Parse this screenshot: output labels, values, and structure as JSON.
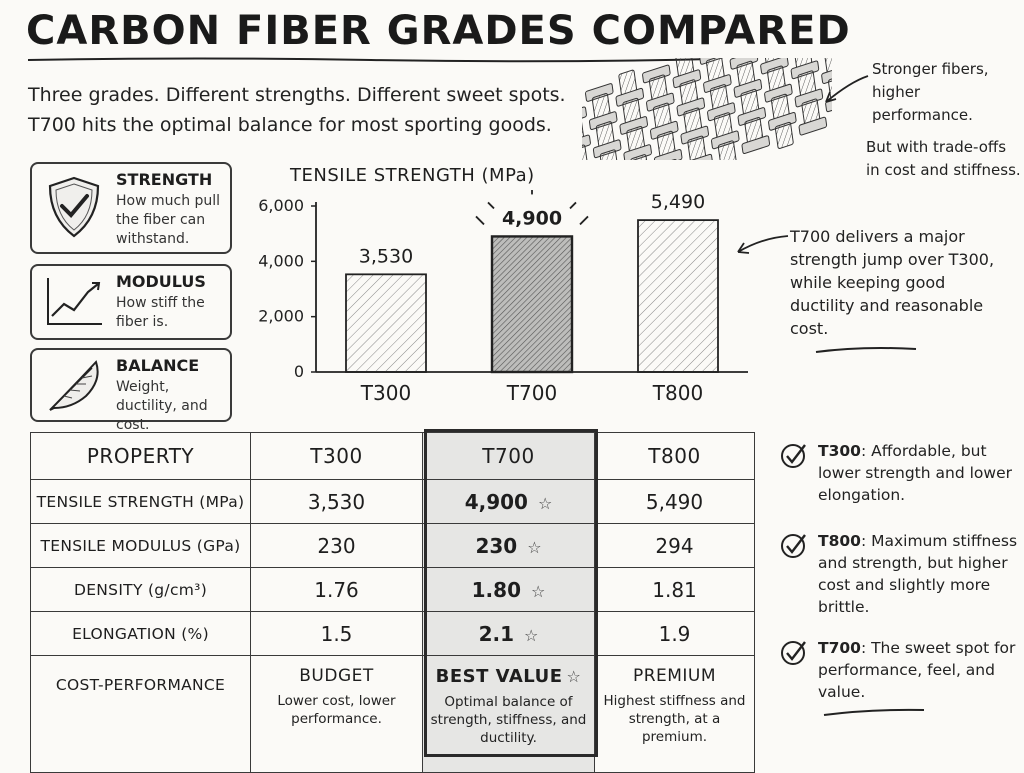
{
  "title": "CARBON FIBER GRADES COMPARED",
  "intro": {
    "line1": "Three grades. Different strengths. Different sweet spots.",
    "line2": "T700 hits the optimal balance for most sporting goods."
  },
  "notes": {
    "weave_line1": "Stronger fibers, higher performance.",
    "weave_line2": "But with trade-offs in cost and stiffness.",
    "chart_note": "T700 delivers a major strength jump over T300, while keeping good ductility and reasonable cost."
  },
  "legend_boxes": [
    {
      "title": "STRENGTH",
      "desc": "How much pull the fiber can withstand.",
      "icon": "shield-check-icon"
    },
    {
      "title": "MODULUS",
      "desc": "How stiff the fiber is.",
      "icon": "rising-chart-icon"
    },
    {
      "title": "BALANCE",
      "desc": "Weight, ductility, and cost.",
      "icon": "feather-icon"
    }
  ],
  "chart_data": {
    "type": "bar",
    "title": "TENSILE STRENGTH (MPa)",
    "categories": [
      "T300",
      "T700",
      "T800"
    ],
    "values": [
      3530,
      4900,
      5490
    ],
    "data_labels": [
      "3,530",
      "4,900",
      "5,490"
    ],
    "ylim": [
      0,
      6000
    ],
    "yticks": [
      0,
      2000,
      4000,
      6000
    ],
    "ytick_labels": [
      "0",
      "2,000",
      "4,000",
      "6,000"
    ],
    "highlight": "T700",
    "xlabel": "",
    "ylabel": ""
  },
  "table": {
    "headers": [
      "PROPERTY",
      "T300",
      "T700",
      "T800"
    ],
    "rows": [
      {
        "label": "TENSILE STRENGTH (MPa)",
        "t300": "3,530",
        "t700": "4,900",
        "t800": "5,490"
      },
      {
        "label": "TENSILE MODULUS (GPa)",
        "t300": "230",
        "t700": "230",
        "t800": "294"
      },
      {
        "label": "DENSITY (g/cm³)",
        "t300": "1.76",
        "t700": "1.80",
        "t800": "1.81"
      },
      {
        "label": "ELONGATION (%)",
        "t300": "1.5",
        "t700": "2.1",
        "t800": "1.9"
      }
    ],
    "cost": {
      "label": "COST-PERFORMANCE",
      "t300_title": "BUDGET",
      "t300_desc": "Lower cost, lower performance.",
      "t700_title": "BEST VALUE",
      "t700_desc": "Optimal balance of strength, stiffness, and ductility.",
      "t800_title": "PREMIUM",
      "t800_desc": "Highest stiffness and strength, at a premium."
    },
    "star": "☆"
  },
  "summary": [
    {
      "name": "T300",
      "text": ": Affordable, but lower strength and lower elongation."
    },
    {
      "name": "T800",
      "text": ": Maximum stiffness and strength, but higher cost and slightly more brittle."
    },
    {
      "name": "T700",
      "text": ": The sweet spot for performance, feel, and value."
    }
  ],
  "colors": {
    "ink": "#1e1e1e",
    "highlight_fill": "#e6e6e4",
    "paper": "#fbfaf7"
  }
}
